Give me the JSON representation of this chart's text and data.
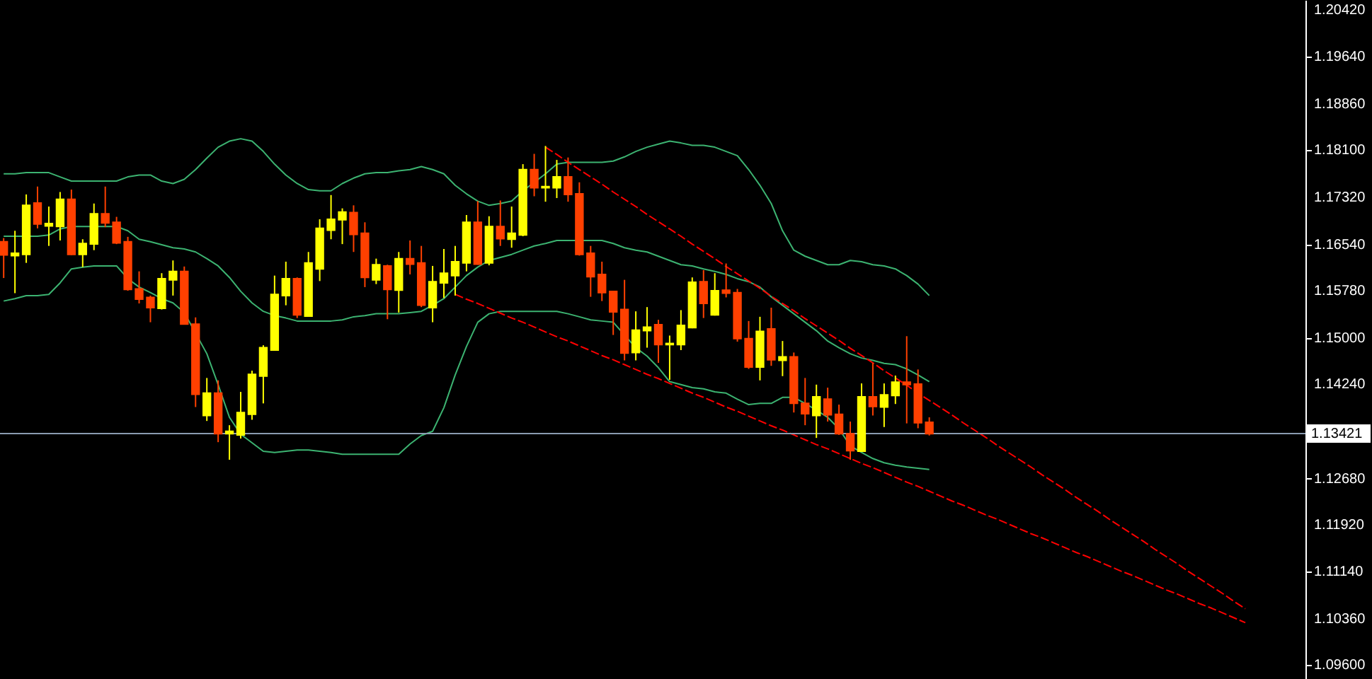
{
  "chart_data": {
    "type": "candlestick",
    "tick_labels": "y",
    "grid": false,
    "ylim": [
      1.0937,
      1.2058
    ],
    "yticks": [
      {
        "value": 1.2042,
        "label": "1.20420"
      },
      {
        "value": 1.1964,
        "label": "1.19640"
      },
      {
        "value": 1.1886,
        "label": "1.18860"
      },
      {
        "value": 1.181,
        "label": "1.18100"
      },
      {
        "value": 1.1732,
        "label": "1.17320"
      },
      {
        "value": 1.1654,
        "label": "1.16540"
      },
      {
        "value": 1.1578,
        "label": "1.15780"
      },
      {
        "value": 1.15,
        "label": "1.15000"
      },
      {
        "value": 1.1424,
        "label": "1.14240"
      },
      {
        "value": 1.1268,
        "label": "1.12680"
      },
      {
        "value": 1.1192,
        "label": "1.11920"
      },
      {
        "value": 1.1114,
        "label": "1.11140"
      },
      {
        "value": 1.1036,
        "label": "1.10360"
      },
      {
        "value": 1.096,
        "label": "1.09600"
      }
    ],
    "ref_lines": [
      {
        "axis": "y",
        "value": 1.13421,
        "label": "1.13421",
        "color": "#8a9bb0"
      }
    ],
    "categories": [
      null,
      null,
      null,
      null,
      null,
      null,
      null,
      null,
      null,
      null,
      null,
      null,
      null,
      null,
      null,
      null,
      null,
      null,
      null,
      null,
      null,
      null,
      null,
      null,
      null,
      null,
      null,
      null,
      null,
      null,
      null,
      null,
      null,
      null,
      null,
      null,
      null,
      null,
      null,
      null,
      null,
      null,
      null,
      null,
      null,
      null,
      null,
      null,
      null,
      null,
      null,
      null,
      null,
      null,
      null,
      null,
      null,
      null,
      null,
      null,
      null,
      null,
      null,
      null,
      null,
      null,
      null,
      null,
      null,
      null,
      null,
      null,
      null,
      null,
      null,
      null,
      null,
      null,
      null,
      null,
      null,
      null,
      null,
      null,
      null,
      null,
      null,
      null,
      null,
      null,
      null,
      null,
      null,
      null,
      null,
      null,
      null,
      null,
      null,
      null,
      null,
      null,
      null,
      null,
      null,
      null,
      null,
      null,
      null,
      null,
      null,
      null,
      null,
      null,
      null,
      null
    ],
    "ohlc": [
      [
        1.1659,
        1.1665,
        1.1599,
        1.1637
      ],
      [
        1.1636,
        1.1677,
        1.1574,
        1.164
      ],
      [
        1.1638,
        1.1737,
        1.1624,
        1.1719
      ],
      [
        1.1723,
        1.175,
        1.1681,
        1.1688
      ],
      [
        1.1685,
        1.1717,
        1.1652,
        1.1689
      ],
      [
        1.1684,
        1.1741,
        1.1661,
        1.1729
      ],
      [
        1.1729,
        1.1745,
        1.1637,
        1.1638
      ],
      [
        1.1638,
        1.1663,
        1.1617,
        1.1656
      ],
      [
        1.1655,
        1.1722,
        1.1645,
        1.1705
      ],
      [
        1.1705,
        1.175,
        1.1683,
        1.169
      ],
      [
        1.1691,
        1.17,
        1.1655,
        1.1657
      ],
      [
        1.1659,
        1.1667,
        1.1578,
        1.158
      ],
      [
        1.1581,
        1.161,
        1.1557,
        1.1564
      ],
      [
        1.1567,
        1.157,
        1.1526,
        1.155
      ],
      [
        1.1549,
        1.1607,
        1.1547,
        1.1598
      ],
      [
        1.1596,
        1.1628,
        1.157,
        1.161
      ],
      [
        1.161,
        1.1618,
        1.1522,
        1.1523
      ],
      [
        1.1523,
        1.1534,
        1.1386,
        1.1407
      ],
      [
        1.1372,
        1.1434,
        1.1363,
        1.1409
      ],
      [
        1.1409,
        1.143,
        1.1328,
        1.1342
      ],
      [
        1.1342,
        1.1356,
        1.1299,
        1.1346
      ],
      [
        1.134,
        1.1411,
        1.1334,
        1.1377
      ],
      [
        1.1374,
        1.1446,
        1.1365,
        1.144
      ],
      [
        1.1437,
        1.1488,
        1.1392,
        1.1484
      ],
      [
        1.148,
        1.1603,
        1.1479,
        1.1572
      ],
      [
        1.157,
        1.1626,
        1.1554,
        1.1598
      ],
      [
        1.1598,
        1.16,
        1.1533,
        1.1538
      ],
      [
        1.1536,
        1.1642,
        1.1535,
        1.1624
      ],
      [
        1.1614,
        1.1696,
        1.1594,
        1.1681
      ],
      [
        1.1678,
        1.1736,
        1.1663,
        1.1696
      ],
      [
        1.1695,
        1.1714,
        1.1655,
        1.1708
      ],
      [
        1.1707,
        1.1719,
        1.1642,
        1.1671
      ],
      [
        1.1673,
        1.1691,
        1.1584,
        1.16
      ],
      [
        1.1596,
        1.1631,
        1.1589,
        1.1621
      ],
      [
        1.1619,
        1.1621,
        1.1531,
        1.158
      ],
      [
        1.1579,
        1.1642,
        1.1542,
        1.1631
      ],
      [
        1.1631,
        1.1661,
        1.1605,
        1.1622
      ],
      [
        1.1624,
        1.1652,
        1.1551,
        1.1554
      ],
      [
        1.155,
        1.1619,
        1.1526,
        1.1593
      ],
      [
        1.1591,
        1.1647,
        1.1566,
        1.1607
      ],
      [
        1.1603,
        1.1652,
        1.157,
        1.1626
      ],
      [
        1.1624,
        1.1703,
        1.161,
        1.1691
      ],
      [
        1.1691,
        1.1726,
        1.1621,
        1.1622
      ],
      [
        1.1624,
        1.1701,
        1.162,
        1.1684
      ],
      [
        1.1684,
        1.1727,
        1.1652,
        1.1664
      ],
      [
        1.1663,
        1.1717,
        1.1649,
        1.1673
      ],
      [
        1.167,
        1.1787,
        1.1668,
        1.1778
      ],
      [
        1.1778,
        1.1804,
        1.1734,
        1.1748
      ],
      [
        1.1748,
        1.1817,
        1.1725,
        1.175
      ],
      [
        1.1748,
        1.1794,
        1.1731,
        1.1766
      ],
      [
        1.1766,
        1.1798,
        1.1725,
        1.1737
      ],
      [
        1.1738,
        1.1757,
        1.1636,
        1.1638
      ],
      [
        1.164,
        1.1652,
        1.1568,
        1.1601
      ],
      [
        1.1605,
        1.1626,
        1.1561,
        1.1575
      ],
      [
        1.1577,
        1.1578,
        1.1505,
        1.1543
      ],
      [
        1.1547,
        1.1596,
        1.1463,
        1.1475
      ],
      [
        1.1476,
        1.1544,
        1.1463,
        1.1513
      ],
      [
        1.1512,
        1.1551,
        1.1484,
        1.1518
      ],
      [
        1.1522,
        1.153,
        1.1459,
        1.1489
      ],
      [
        1.1489,
        1.1504,
        1.1431,
        1.1491
      ],
      [
        1.1489,
        1.1546,
        1.148,
        1.1521
      ],
      [
        1.1517,
        1.16,
        1.1516,
        1.1592
      ],
      [
        1.1593,
        1.1612,
        1.1533,
        1.1557
      ],
      [
        1.1538,
        1.1607,
        1.1537,
        1.1578
      ],
      [
        1.1579,
        1.1623,
        1.1567,
        1.1574
      ],
      [
        1.1575,
        1.1581,
        1.1494,
        1.1499
      ],
      [
        1.1499,
        1.1528,
        1.1449,
        1.1452
      ],
      [
        1.1452,
        1.1535,
        1.143,
        1.1511
      ],
      [
        1.1515,
        1.155,
        1.1454,
        1.1464
      ],
      [
        1.1463,
        1.1495,
        1.1437,
        1.1469
      ],
      [
        1.1469,
        1.1476,
        1.1377,
        1.1392
      ],
      [
        1.1392,
        1.1434,
        1.1356,
        1.1375
      ],
      [
        1.1372,
        1.1423,
        1.1335,
        1.1403
      ],
      [
        1.1399,
        1.1418,
        1.1362,
        1.1373
      ],
      [
        1.1374,
        1.139,
        1.134,
        1.1342
      ],
      [
        1.1342,
        1.1362,
        1.1299,
        1.1314
      ],
      [
        1.1313,
        1.1425,
        1.1312,
        1.1403
      ],
      [
        1.1403,
        1.1459,
        1.1372,
        1.1387
      ],
      [
        1.1386,
        1.1425,
        1.1353,
        1.1406
      ],
      [
        1.1405,
        1.1438,
        1.1391,
        1.1427
      ],
      [
        1.1427,
        1.1503,
        1.1359,
        1.1423
      ],
      [
        1.1424,
        1.1448,
        1.1351,
        1.136
      ],
      [
        1.1361,
        1.1369,
        1.1339,
        1.1342
      ],
      null,
      null,
      null,
      null,
      null,
      null,
      null,
      null,
      null,
      null,
      null,
      null,
      null,
      null,
      null,
      null,
      null,
      null,
      null,
      null,
      null,
      null,
      null,
      null,
      null,
      null,
      null,
      null,
      null,
      null,
      null,
      null,
      null
    ],
    "colors": [
      "#ff4000",
      "#ffff00",
      "#ffff00",
      "#ff4000",
      "#ffff00",
      "#ffff00",
      "#ff4000",
      "#ffff00",
      "#ffff00",
      "#ff4000",
      "#ff4000",
      "#ff4000",
      "#ff4000",
      "#ff4000",
      "#ffff00",
      "#ffff00",
      "#ff4000",
      "#ff4000",
      "#ffff00",
      "#ff4000",
      "#ffff00",
      "#ffff00",
      "#ffff00",
      "#ffff00",
      "#ffff00",
      "#ffff00",
      "#ff4000",
      "#ffff00",
      "#ffff00",
      "#ffff00",
      "#ffff00",
      "#ff4000",
      "#ff4000",
      "#ffff00",
      "#ff4000",
      "#ffff00",
      "#ff4000",
      "#ff4000",
      "#ffff00",
      "#ffff00",
      "#ffff00",
      "#ffff00",
      "#ff4000",
      "#ffff00",
      "#ff4000",
      "#ffff00",
      "#ffff00",
      "#ff4000",
      "#ffff00",
      "#ffff00",
      "#ff4000",
      "#ff4000",
      "#ff4000",
      "#ff4000",
      "#ff4000",
      "#ff4000",
      "#ffff00",
      "#ffff00",
      "#ff4000",
      "#ffff00",
      "#ffff00",
      "#ffff00",
      "#ff4000",
      "#ffff00",
      "#ff4000",
      "#ff4000",
      "#ff4000",
      "#ffff00",
      "#ff4000",
      "#ffff00",
      "#ff4000",
      "#ff4000",
      "#ffff00",
      "#ff4000",
      "#ff4000",
      "#ff4000",
      "#ffff00",
      "#ff4000",
      "#ffff00",
      "#ffff00",
      "#ff4000",
      "#ff4000",
      "#ff4000",
      null,
      null,
      null,
      null,
      null,
      null,
      null,
      null,
      null,
      null,
      null,
      null,
      null,
      null,
      null,
      null,
      null,
      null,
      null,
      null,
      null,
      null,
      null,
      null,
      null,
      null,
      null,
      null,
      null,
      null,
      null,
      null,
      null
    ],
    "series": [
      {
        "type": "line",
        "color": "#3cb371",
        "values": [
          1.1771,
          1.1771,
          1.1773,
          1.1773,
          1.1773,
          1.1766,
          1.1759,
          1.1759,
          1.1759,
          1.1759,
          1.1759,
          1.1766,
          1.1769,
          1.1769,
          1.1759,
          1.1755,
          1.1762,
          1.1778,
          1.1797,
          1.1815,
          1.1825,
          1.1829,
          1.1825,
          1.1808,
          1.1787,
          1.1769,
          1.1755,
          1.1745,
          1.1743,
          1.1743,
          1.1755,
          1.1764,
          1.1771,
          1.1773,
          1.1773,
          1.1776,
          1.1778,
          1.1783,
          1.1778,
          1.1771,
          1.1752,
          1.1738,
          1.1726,
          1.1719,
          1.1722,
          1.1726,
          1.1743,
          1.1757,
          1.1771,
          1.1787,
          1.179,
          1.179,
          1.179,
          1.179,
          1.1792,
          1.1799,
          1.1808,
          1.1815,
          1.182,
          1.1825,
          1.1822,
          1.1818,
          1.1818,
          1.1815,
          1.1808,
          1.1801,
          1.1778,
          1.1752,
          1.1722,
          1.1677,
          1.1645,
          1.1635,
          1.1628,
          1.1621,
          1.1621,
          1.1628,
          1.1626,
          1.1621,
          1.1619,
          1.1614,
          1.1603,
          1.1589,
          1.157,
          null,
          null,
          null,
          null,
          null,
          null,
          null,
          null,
          null,
          null,
          null,
          null,
          null,
          null,
          null,
          null,
          null,
          null,
          null,
          null,
          null,
          null,
          null,
          null,
          null,
          null,
          null,
          null,
          null,
          null,
          null,
          null,
          null
        ]
      },
      {
        "type": "line",
        "color": "#3cb371",
        "values": [
          1.1668,
          1.1668,
          1.1668,
          1.1668,
          1.167,
          1.168,
          1.1684,
          1.1684,
          1.1684,
          1.1684,
          1.1684,
          1.1677,
          1.1663,
          1.1659,
          1.1654,
          1.1649,
          1.1647,
          1.1642,
          1.1631,
          1.1619,
          1.16,
          1.1577,
          1.1558,
          1.1544,
          1.1537,
          1.1533,
          1.1528,
          1.1528,
          1.1528,
          1.1528,
          1.153,
          1.1535,
          1.1537,
          1.154,
          1.154,
          1.154,
          1.1542,
          1.1544,
          1.1554,
          1.1565,
          1.1584,
          1.1603,
          1.1617,
          1.1628,
          1.1633,
          1.1638,
          1.1645,
          1.1652,
          1.1656,
          1.1661,
          1.1661,
          1.1661,
          1.1661,
          1.1661,
          1.1656,
          1.1649,
          1.1645,
          1.1642,
          1.1635,
          1.1628,
          1.1621,
          1.1619,
          1.1614,
          1.161,
          1.1605,
          1.1598,
          1.1593,
          1.1584,
          1.1568,
          1.1554,
          1.154,
          1.1526,
          1.1512,
          1.1495,
          1.1484,
          1.1474,
          1.1467,
          1.1463,
          1.1458,
          1.1456,
          1.1449,
          1.1439,
          1.1428,
          null,
          null,
          null,
          null,
          null,
          null,
          null,
          null,
          null,
          null,
          null,
          null,
          null,
          null,
          null,
          null,
          null,
          null,
          null,
          null,
          null,
          null,
          null,
          null,
          null,
          null,
          null,
          null,
          null,
          null,
          null,
          null,
          null
        ]
      },
      {
        "type": "line",
        "color": "#3cb371",
        "values": [
          1.1561,
          1.1565,
          1.157,
          1.157,
          1.1572,
          1.1591,
          1.1614,
          1.1617,
          1.1619,
          1.1619,
          1.1619,
          1.1598,
          1.1584,
          1.1575,
          1.1565,
          1.1558,
          1.1542,
          null,
          1.1474,
          1.1423,
          1.1369,
          1.1341,
          1.1327,
          1.1313,
          1.1311,
          1.1313,
          1.1315,
          1.1315,
          1.1313,
          1.1311,
          1.1308,
          1.1308,
          1.1308,
          1.1308,
          1.1308,
          1.1308,
          1.1325,
          1.1339,
          1.1346,
          1.1385,
          1.1439,
          1.1486,
          1.1526,
          1.154,
          1.1544,
          1.1544,
          1.1544,
          1.1544,
          1.1544,
          1.1544,
          1.154,
          1.1535,
          1.153,
          1.1528,
          1.1526,
          1.1505,
          1.1484,
          1.147,
          1.1451,
          1.1428,
          1.1423,
          1.1418,
          1.1416,
          1.1411,
          1.1409,
          1.1399,
          1.139,
          1.1392,
          1.1392,
          1.1402,
          1.1402,
          1.1392,
          1.1381,
          1.1369,
          1.135,
          1.1322,
          1.1311,
          1.1301,
          1.1294,
          1.129,
          1.1287,
          1.1285,
          1.1283,
          null,
          null,
          null,
          null,
          null,
          null,
          null,
          null,
          null,
          null,
          null,
          null,
          null,
          null,
          null,
          null,
          null,
          null,
          null,
          null,
          null,
          null,
          null,
          null,
          null,
          null,
          null,
          null,
          null,
          null,
          null,
          null,
          null
        ]
      },
      {
        "type": "line",
        "color": "#ff0000",
        "line_style": "dashed",
        "values": [
          null,
          null,
          null,
          null,
          null,
          null,
          null,
          null,
          null,
          null,
          null,
          null,
          null,
          null,
          null,
          null,
          null,
          null,
          null,
          null,
          null,
          null,
          null,
          null,
          null,
          null,
          null,
          null,
          null,
          null,
          null,
          null,
          null,
          null,
          null,
          null,
          null,
          null,
          null,
          null,
          null,
          null,
          null,
          null,
          null,
          null,
          null,
          null,
          1.1815,
          1.1803,
          1.179,
          1.1778,
          1.1766,
          1.1754,
          1.1741,
          1.1729,
          1.1717,
          1.1704,
          1.1692,
          1.168,
          1.1668,
          1.1655,
          1.1643,
          1.1631,
          1.1618,
          1.1606,
          1.1594,
          1.1582,
          1.1569,
          1.1557,
          1.1545,
          1.1532,
          1.152,
          1.1508,
          1.1496,
          1.1483,
          1.1471,
          1.1459,
          1.1446,
          1.1434,
          1.1422,
          1.1409,
          1.1397,
          1.1385,
          1.1373,
          1.136,
          1.1348,
          1.1336,
          1.1323,
          1.1311,
          1.1299,
          1.1287,
          1.1274,
          1.1262,
          1.125,
          1.1237,
          1.1225,
          1.1213,
          1.12,
          1.1188,
          1.1176,
          1.1164,
          1.1151,
          1.1139,
          1.1127,
          1.1114,
          1.1102,
          1.109,
          1.1078,
          1.1065,
          1.1053,
          null,
          null,
          null,
          null,
          null
        ]
      },
      {
        "type": "line",
        "color": "#ff0000",
        "line_style": "dashed",
        "values": [
          null,
          null,
          null,
          null,
          null,
          null,
          null,
          null,
          null,
          null,
          null,
          null,
          null,
          null,
          null,
          null,
          null,
          null,
          null,
          null,
          null,
          null,
          null,
          null,
          null,
          null,
          null,
          null,
          null,
          null,
          null,
          null,
          null,
          null,
          null,
          null,
          null,
          null,
          null,
          null,
          1.1572,
          1.1564,
          1.1557,
          1.1549,
          1.1541,
          1.1533,
          1.1526,
          1.1518,
          1.151,
          1.1502,
          1.1495,
          1.1487,
          1.1479,
          1.1471,
          1.1464,
          1.1456,
          1.1448,
          1.144,
          1.1433,
          1.1425,
          1.1417,
          1.1409,
          1.1402,
          1.1394,
          1.1386,
          1.1379,
          1.1371,
          1.1363,
          1.1355,
          1.1348,
          1.134,
          1.1332,
          1.1324,
          1.1317,
          1.1309,
          1.1301,
          1.1293,
          1.1286,
          1.1278,
          1.127,
          1.1262,
          1.1255,
          1.1247,
          1.1239,
          1.1231,
          1.1224,
          1.1216,
          1.1208,
          1.1201,
          1.1193,
          1.1185,
          1.1177,
          1.117,
          1.1162,
          1.1154,
          1.1146,
          1.1139,
          1.1131,
          1.1123,
          1.1115,
          1.1108,
          1.11,
          1.1092,
          1.1084,
          1.1077,
          1.1069,
          1.1061,
          1.1054,
          1.1046,
          1.1038,
          1.103,
          null,
          null,
          null,
          null,
          null
        ]
      }
    ]
  }
}
